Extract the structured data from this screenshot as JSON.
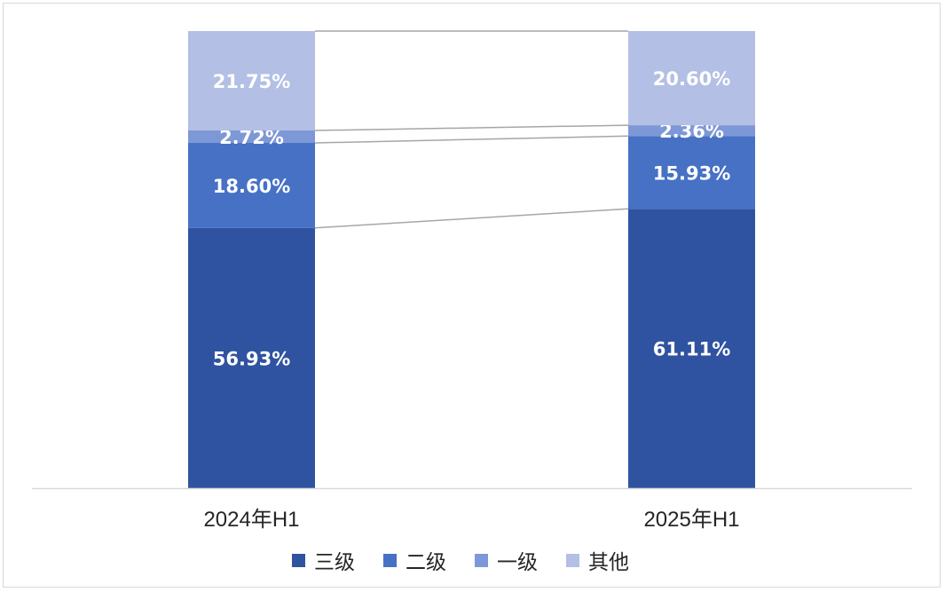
{
  "chart_data": {
    "type": "bar",
    "stacked": true,
    "percent_stacked": true,
    "categories": [
      "2024年H1",
      "2025年H1"
    ],
    "series": [
      {
        "name": "三级",
        "values": [
          56.93,
          61.11
        ],
        "labels": [
          "56.93%",
          "61.11%"
        ],
        "color": "#2f53a0"
      },
      {
        "name": "二级",
        "values": [
          18.6,
          15.93
        ],
        "labels": [
          "18.60%",
          "15.93%"
        ],
        "color": "#4671c4"
      },
      {
        "name": "一级",
        "values": [
          2.72,
          2.36
        ],
        "labels": [
          "2.72%",
          "2.36%"
        ],
        "color": "#7d98d6"
      },
      {
        "name": "其他",
        "values": [
          21.75,
          20.6
        ],
        "labels": [
          "21.75%",
          "20.60%"
        ],
        "color": "#b3bfe4"
      }
    ],
    "series_lines": true,
    "legend_position": "bottom",
    "grid": false,
    "axis_line_color": "#d9d9d9",
    "series_line_color": "#a6a6a6"
  }
}
